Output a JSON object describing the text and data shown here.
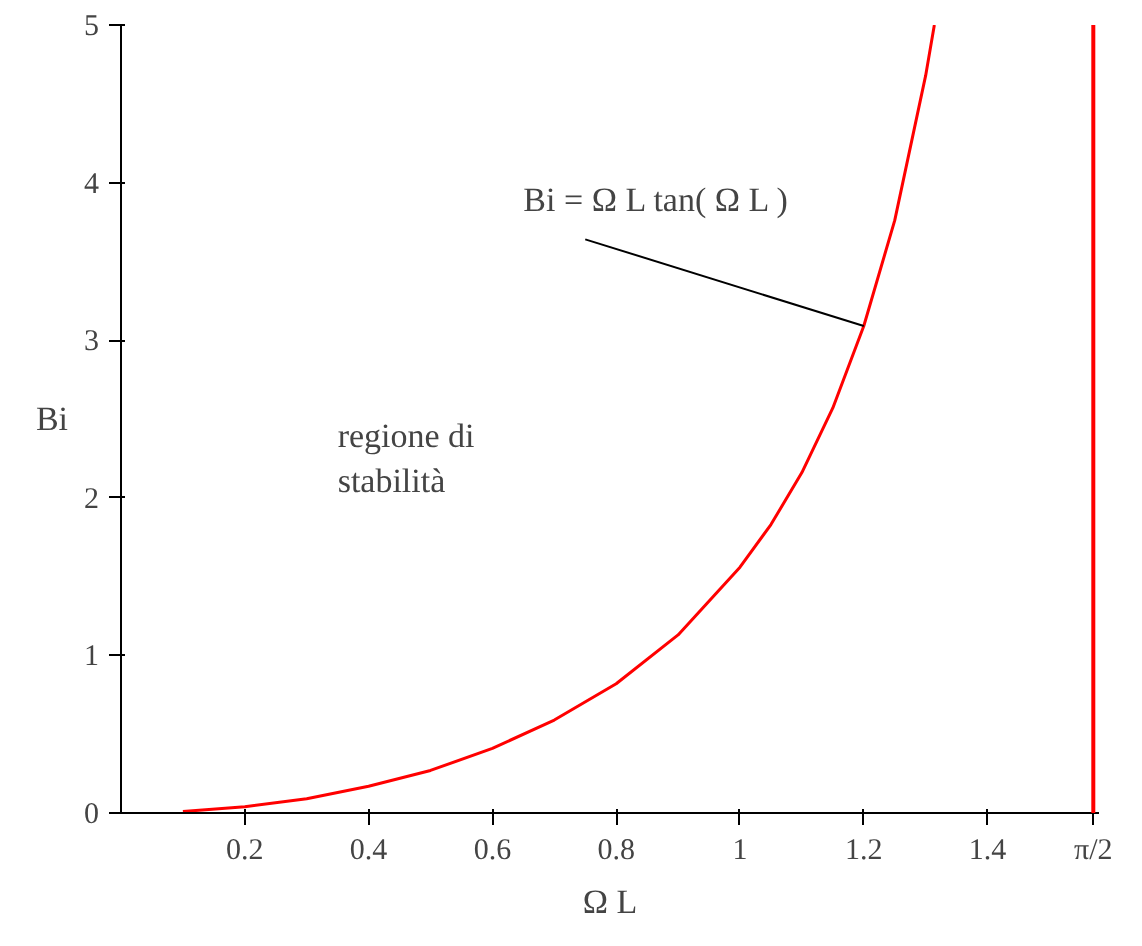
{
  "chart_data": {
    "type": "line",
    "xlabel": "Ω L",
    "ylabel": "Bi",
    "x": [
      0.1,
      0.2,
      0.3,
      0.4,
      0.5,
      0.6,
      0.7,
      0.8,
      0.9,
      1.0,
      1.05,
      1.1,
      1.15,
      1.2,
      1.25,
      1.3,
      1.314
    ],
    "series": [
      {
        "color": "#ff0000",
        "values": [
          0.01,
          0.04,
          0.09,
          0.17,
          0.27,
          0.41,
          0.59,
          0.82,
          1.13,
          1.56,
          1.83,
          2.16,
          2.57,
          3.09,
          3.76,
          4.68,
          5.0
        ]
      }
    ],
    "xlim": [
      0,
      1.58
    ],
    "ylim": [
      0,
      5
    ],
    "xticks": [
      0.2,
      0.4,
      0.6,
      0.8,
      1,
      1.2,
      1.4,
      {
        "value": 1.5708,
        "label": "π/2"
      }
    ],
    "yticks": [
      0,
      1,
      2,
      3,
      4,
      5
    ],
    "ref_lines": [
      {
        "axis": "x",
        "value": 1.5708,
        "color": "#ff0000"
      }
    ],
    "annotations": [
      {
        "text": "Bi = Ω L tan( Ω L )",
        "x": 1.2,
        "y": 3.09
      },
      "regione di\nstabilità"
    ],
    "grid": false,
    "marker": "none",
    "line_style": "solid"
  }
}
